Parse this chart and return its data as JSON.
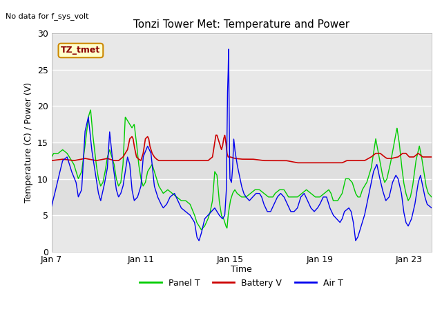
{
  "title": "Tonzi Tower Met: Temperature and Power",
  "ylabel": "Temperature (C) / Power (V)",
  "xlabel": "Time",
  "no_data_label": "No data for f_sys_volt",
  "legend_label": "TZ_tmet",
  "ylim": [
    0,
    30
  ],
  "xlim_days": 17,
  "xtick_positions": [
    0,
    4,
    8,
    12,
    16
  ],
  "xtick_labels": [
    "Jan 7",
    "Jan 11",
    "Jan 15",
    "Jan 19",
    "Jan 23"
  ],
  "ytick_positions": [
    0,
    5,
    10,
    15,
    20,
    25,
    30
  ],
  "plot_bg_color": "#e8e8e8",
  "panel_t_color": "#00cc00",
  "battery_v_color": "#cc0000",
  "air_t_color": "#0000ee",
  "title_fontsize": 11,
  "axis_fontsize": 9,
  "legend_entries": [
    "Panel T",
    "Battery V",
    "Air T"
  ]
}
